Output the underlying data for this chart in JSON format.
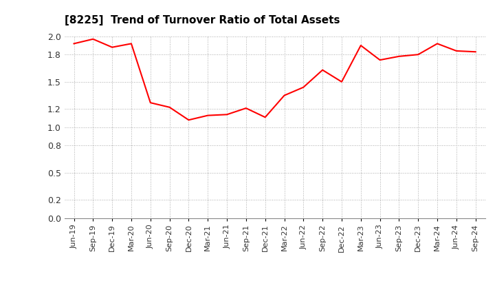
{
  "title": "[8225]  Trend of Turnover Ratio of Total Assets",
  "line_color": "#FF0000",
  "line_width": 1.5,
  "background_color": "#FFFFFF",
  "grid_color": "#AAAAAA",
  "ylim": [
    0.0,
    2.0
  ],
  "yticks": [
    0.0,
    0.2,
    0.5,
    0.8,
    1.0,
    1.2,
    1.5,
    1.8,
    2.0
  ],
  "labels": [
    "Jun-19",
    "Sep-19",
    "Dec-19",
    "Mar-20",
    "Jun-20",
    "Sep-20",
    "Dec-20",
    "Mar-21",
    "Jun-21",
    "Sep-21",
    "Dec-21",
    "Mar-22",
    "Jun-22",
    "Sep-22",
    "Dec-22",
    "Mar-23",
    "Jun-23",
    "Sep-23",
    "Dec-23",
    "Mar-24",
    "Jun-24",
    "Sep-24"
  ],
  "values": [
    1.92,
    1.97,
    1.88,
    1.92,
    1.27,
    1.22,
    1.08,
    1.13,
    1.14,
    1.21,
    1.11,
    1.35,
    1.44,
    1.63,
    1.5,
    1.9,
    1.74,
    1.78,
    1.8,
    1.92,
    1.84,
    1.83
  ]
}
